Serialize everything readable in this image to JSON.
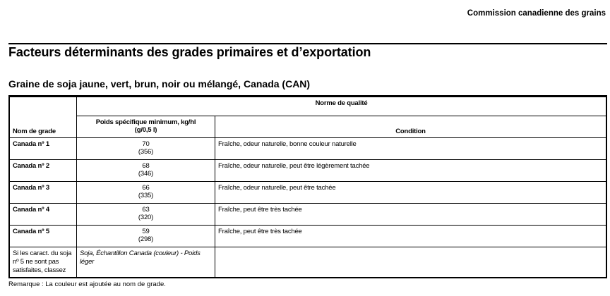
{
  "organization": "Commission canadienne des grains",
  "title": "Facteurs déterminants des grades primaires et d’exportation",
  "subtitle": "Graine de soja jaune, vert, brun, noir ou mélangé, Canada (CAN)",
  "table": {
    "headers": {
      "grade": "Nom de grade",
      "norme": "Norme de qualité",
      "poids_line1": "Poids spécifique minimum, kg/hl",
      "poids_line2": "(g/0,5 l)",
      "condition": "Condition"
    },
    "rows": [
      {
        "grade": "Canada nº 1",
        "kg": "70",
        "g": "(356)",
        "condition": "Fraîche, odeur naturelle, bonne couleur naturelle"
      },
      {
        "grade": "Canada nº 2",
        "kg": "68",
        "g": "(346)",
        "condition": "Fraîche, odeur naturelle, peut être légèrement tachée"
      },
      {
        "grade": "Canada nº 3",
        "kg": "66",
        "g": "(335)",
        "condition": "Fraîche, odeur naturelle, peut être tachée"
      },
      {
        "grade": "Canada nº 4",
        "kg": "63",
        "g": "(320)",
        "condition": "Fraîche, peut être très tachée"
      },
      {
        "grade": "Canada nº 5",
        "kg": "59",
        "g": "(298)",
        "condition": "Fraîche, peut être très tachée"
      }
    ],
    "fallback": {
      "label": "Si les caract. du soja nº 5 ne sont pas satisfaites, classez",
      "value": "Soja, Échantillon Canada (couleur) - Poids léger"
    }
  },
  "note": "Remarque : La couleur est ajoutée au nom de grade."
}
